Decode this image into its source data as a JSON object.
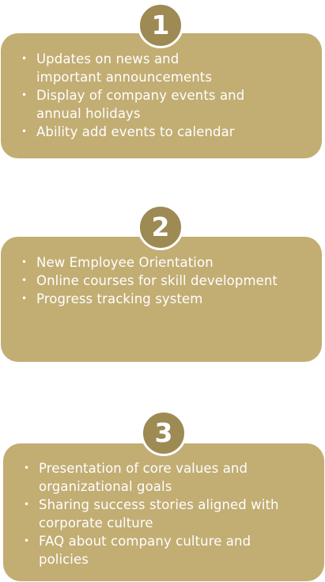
{
  "colors": {
    "card_fill": "#c2ad73",
    "badge_fill": "#9e8a53",
    "text": "#ffffff"
  },
  "steps": [
    {
      "number": "1",
      "items": [
        "Updates on news and\nimportant announcements",
        "Display of company events and\nannual holidays",
        "Ability add events to calendar"
      ]
    },
    {
      "number": "2",
      "items": [
        "New Employee Orientation",
        "Online courses for skill development",
        "Progress tracking system"
      ]
    },
    {
      "number": "3",
      "items": [
        "Presentation of core values and\norganizational goals",
        "Sharing success stories aligned with\ncorporate culture",
        "FAQ about company culture and\npolicies"
      ]
    }
  ]
}
